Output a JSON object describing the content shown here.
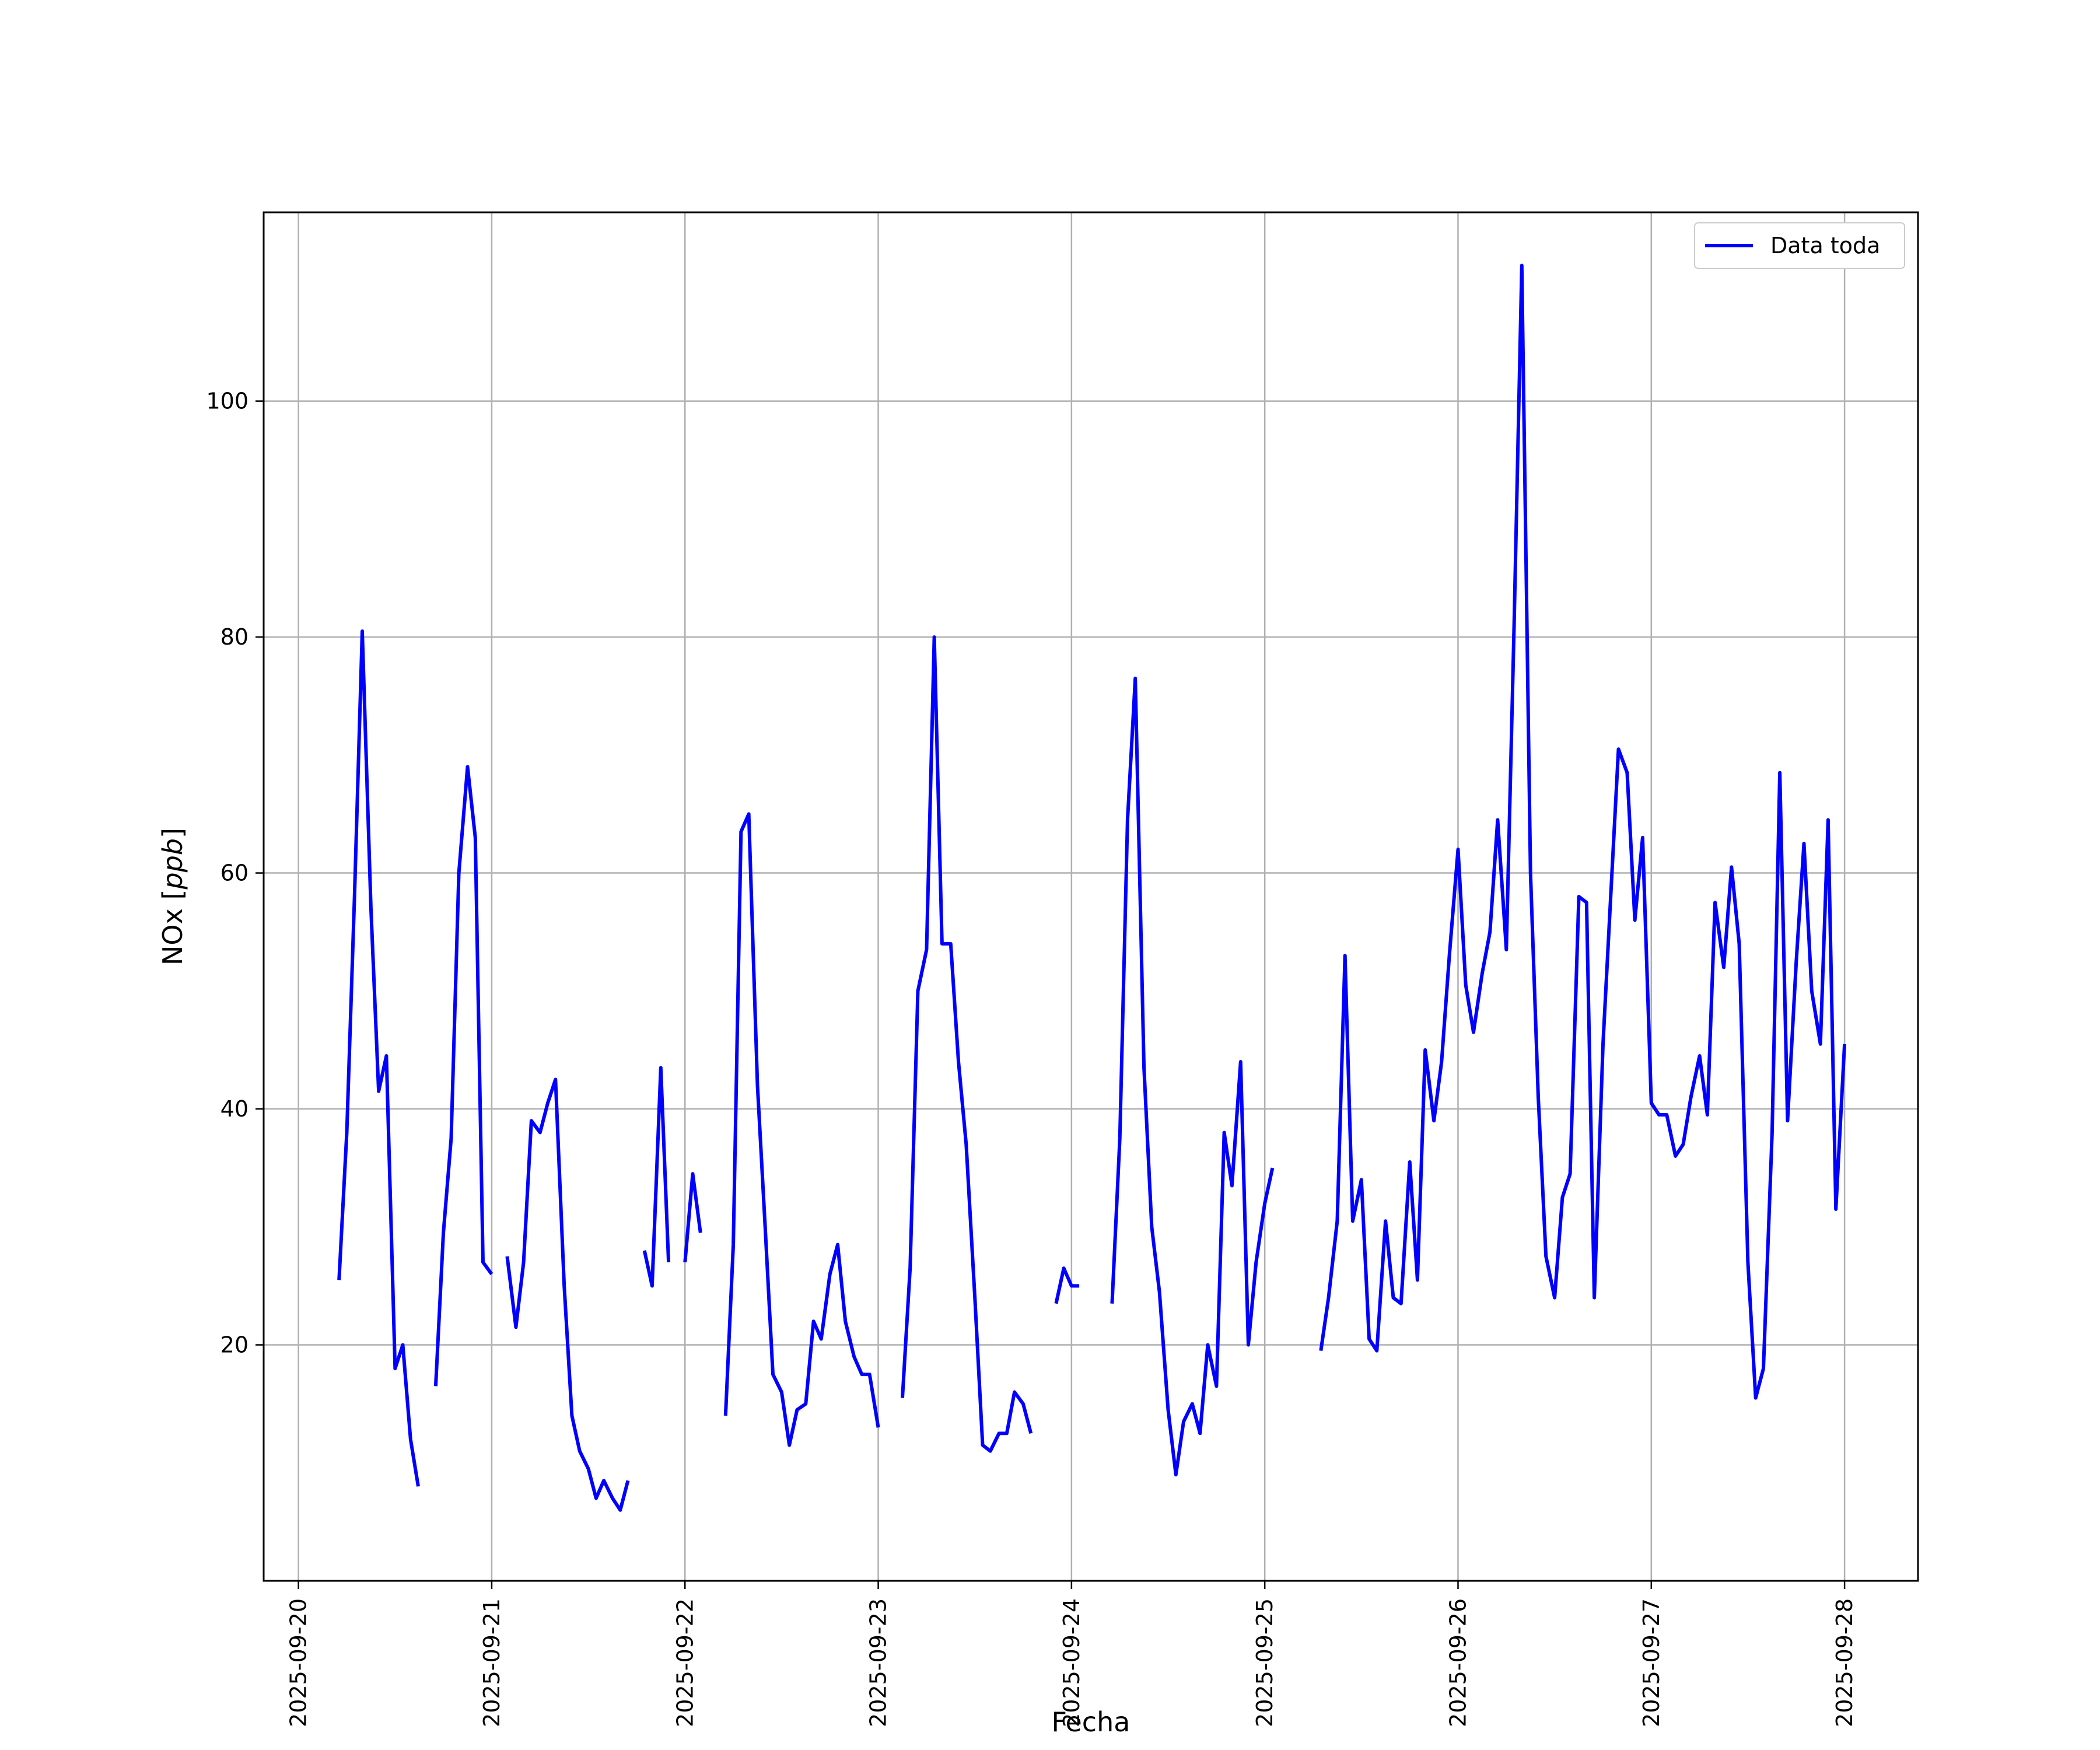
{
  "chart_data": {
    "type": "line",
    "xlabel": "Fecha",
    "ylabel": "NOx [ppb]",
    "ylabel_main": "NOx",
    "ylabel_unit": "ppb",
    "xlim": [
      -0.18,
      8.38
    ],
    "ylim": [
      0,
      116
    ],
    "x_origin_date": "2025-09-20",
    "x_ticks": [
      "2025-09-20",
      "2025-09-21",
      "2025-09-22",
      "2025-09-23",
      "2025-09-24",
      "2025-09-25",
      "2025-09-26",
      "2025-09-27",
      "2025-09-28"
    ],
    "y_ticks": [
      20,
      40,
      60,
      80,
      100
    ],
    "grid": true,
    "legend_position": "top-right",
    "series": [
      {
        "name": "Data toda",
        "color": "#0000ff",
        "segments": [
          [
            [
              0.21,
              25.5
            ],
            [
              0.25,
              38
            ],
            [
              0.29,
              58
            ],
            [
              0.33,
              80.5
            ],
            [
              0.375,
              57
            ],
            [
              0.415,
              41.5
            ],
            [
              0.455,
              44.5
            ],
            [
              0.5,
              18
            ],
            [
              0.54,
              20
            ],
            [
              0.58,
              12
            ],
            [
              0.62,
              8
            ]
          ],
          [
            [
              0.71,
              16.5
            ],
            [
              0.75,
              29.5
            ],
            [
              0.79,
              37.5
            ],
            [
              0.83,
              60
            ],
            [
              0.875,
              69
            ],
            [
              0.915,
              63
            ],
            [
              0.955,
              27
            ],
            [
              1.0,
              26
            ]
          ],
          [
            [
              1.08,
              27.5
            ],
            [
              1.125,
              21.5
            ],
            [
              1.165,
              27
            ],
            [
              1.205,
              39
            ],
            [
              1.25,
              38
            ],
            [
              1.29,
              40.5
            ],
            [
              1.33,
              42.5
            ],
            [
              1.375,
              25
            ],
            [
              1.415,
              14
            ],
            [
              1.455,
              11
            ],
            [
              1.5,
              9.5
            ],
            [
              1.54,
              7
            ],
            [
              1.58,
              8.5
            ],
            [
              1.625,
              7
            ],
            [
              1.665,
              6
            ],
            [
              1.705,
              8.5
            ]
          ],
          [
            [
              1.79,
              28
            ],
            [
              1.83,
              25
            ],
            [
              1.875,
              43.5
            ],
            [
              1.915,
              27
            ]
          ],
          [
            [
              2.0,
              27
            ],
            [
              2.04,
              34.5
            ],
            [
              2.08,
              29.5
            ]
          ],
          [
            [
              2.21,
              14
            ],
            [
              2.25,
              28.5
            ],
            [
              2.29,
              63.5
            ],
            [
              2.33,
              65
            ],
            [
              2.375,
              42
            ],
            [
              2.415,
              30
            ],
            [
              2.455,
              17.5
            ],
            [
              2.5,
              16
            ],
            [
              2.54,
              11.5
            ],
            [
              2.58,
              14.5
            ],
            [
              2.625,
              15
            ],
            [
              2.665,
              22
            ],
            [
              2.705,
              20.5
            ],
            [
              2.75,
              26
            ],
            [
              2.79,
              28.5
            ],
            [
              2.83,
              22
            ],
            [
              2.875,
              19
            ],
            [
              2.915,
              17.5
            ],
            [
              2.955,
              17.5
            ],
            [
              3.0,
              13
            ]
          ],
          [
            [
              3.125,
              15.5
            ],
            [
              3.165,
              26.5
            ],
            [
              3.205,
              50
            ],
            [
              3.25,
              53.5
            ],
            [
              3.29,
              80
            ],
            [
              3.33,
              54
            ],
            [
              3.375,
              54
            ],
            [
              3.415,
              44
            ],
            [
              3.455,
              37
            ],
            [
              3.5,
              24
            ],
            [
              3.54,
              11.5
            ],
            [
              3.58,
              11
            ],
            [
              3.625,
              12.5
            ],
            [
              3.665,
              12.5
            ],
            [
              3.705,
              16
            ],
            [
              3.75,
              15
            ],
            [
              3.79,
              12.5
            ]
          ],
          [
            [
              3.92,
              23.5
            ],
            [
              3.96,
              26.5
            ],
            [
              4.0,
              25
            ],
            [
              4.04,
              25
            ]
          ],
          [
            [
              4.21,
              23.5
            ],
            [
              4.25,
              37.5
            ],
            [
              4.29,
              64.5
            ],
            [
              4.33,
              76.5
            ],
            [
              4.375,
              43.5
            ],
            [
              4.415,
              30
            ],
            [
              4.455,
              24.5
            ],
            [
              4.5,
              14.5
            ],
            [
              4.54,
              9
            ],
            [
              4.58,
              13.5
            ],
            [
              4.625,
              15
            ],
            [
              4.665,
              12.5
            ],
            [
              4.705,
              20
            ],
            [
              4.75,
              16.5
            ],
            [
              4.79,
              38
            ],
            [
              4.83,
              33.5
            ],
            [
              4.875,
              44
            ],
            [
              4.915,
              20
            ],
            [
              4.955,
              27
            ],
            [
              5.0,
              32
            ],
            [
              5.04,
              35
            ]
          ],
          [
            [
              5.29,
              19.5
            ],
            [
              5.33,
              24
            ],
            [
              5.375,
              30.5
            ],
            [
              5.415,
              53
            ],
            [
              5.455,
              30.5
            ],
            [
              5.5,
              34
            ],
            [
              5.54,
              20.5
            ],
            [
              5.58,
              19.5
            ],
            [
              5.625,
              30.5
            ],
            [
              5.665,
              24
            ],
            [
              5.705,
              23.5
            ],
            [
              5.75,
              35.5
            ],
            [
              5.79,
              25.5
            ],
            [
              5.83,
              45
            ],
            [
              5.875,
              39
            ],
            [
              5.915,
              44
            ],
            [
              5.955,
              53
            ],
            [
              6.0,
              62
            ],
            [
              6.04,
              50.5
            ],
            [
              6.08,
              46.5
            ],
            [
              6.125,
              51.5
            ],
            [
              6.165,
              55
            ],
            [
              6.205,
              64.5
            ],
            [
              6.25,
              53.5
            ],
            [
              6.29,
              81
            ],
            [
              6.33,
              111.5
            ],
            [
              6.375,
              60
            ],
            [
              6.415,
              41
            ],
            [
              6.455,
              27.5
            ],
            [
              6.5,
              24
            ],
            [
              6.54,
              32.5
            ],
            [
              6.58,
              34.5
            ],
            [
              6.625,
              58
            ],
            [
              6.665,
              57.5
            ],
            [
              6.705,
              24
            ],
            [
              6.75,
              45.5
            ],
            [
              6.79,
              58
            ],
            [
              6.83,
              70.5
            ],
            [
              6.875,
              68.5
            ],
            [
              6.915,
              56
            ],
            [
              6.955,
              63
            ],
            [
              7.0,
              40.5
            ],
            [
              7.04,
              39.5
            ],
            [
              7.08,
              39.5
            ],
            [
              7.125,
              36
            ],
            [
              7.165,
              37
            ],
            [
              7.205,
              41
            ],
            [
              7.25,
              44.5
            ],
            [
              7.29,
              39.5
            ],
            [
              7.33,
              57.5
            ],
            [
              7.375,
              52
            ],
            [
              7.415,
              60.5
            ],
            [
              7.455,
              54
            ],
            [
              7.5,
              27
            ],
            [
              7.54,
              15.5
            ],
            [
              7.58,
              18
            ],
            [
              7.625,
              38
            ],
            [
              7.665,
              68.5
            ],
            [
              7.705,
              39
            ],
            [
              7.75,
              52.5
            ],
            [
              7.79,
              62.5
            ],
            [
              7.83,
              50
            ],
            [
              7.875,
              45.5
            ],
            [
              7.915,
              64.5
            ],
            [
              7.955,
              31.5
            ],
            [
              8.0,
              45.5
            ]
          ]
        ]
      }
    ]
  }
}
